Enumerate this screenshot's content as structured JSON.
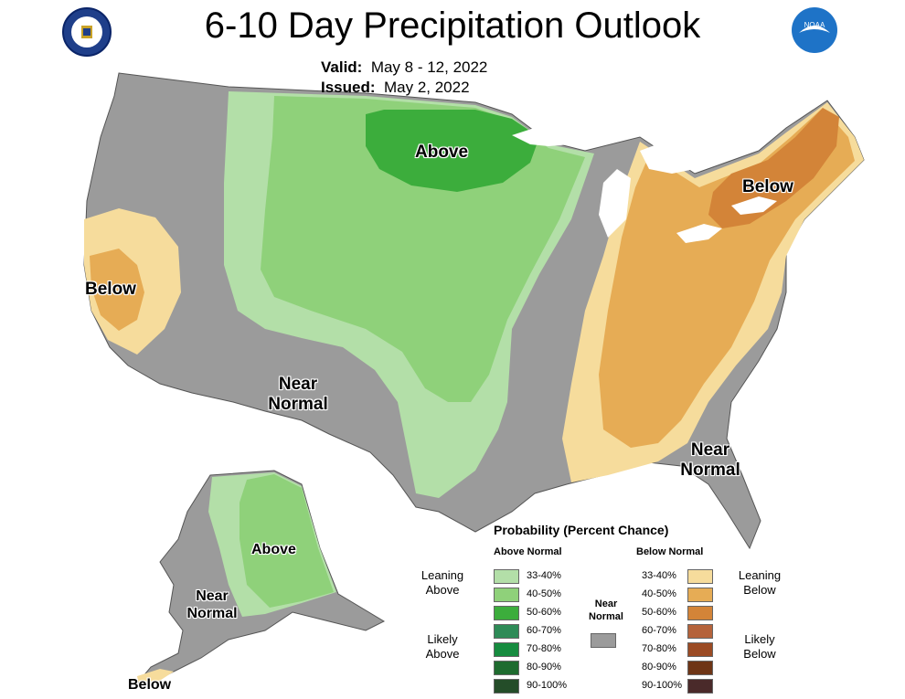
{
  "title": "6-10 Day Precipitation Outlook",
  "valid_label": "Valid:",
  "valid_value": "May 8 - 12, 2022",
  "issued_label": "Issued:",
  "issued_value": "May 2, 2022",
  "logos": {
    "left": "department-of-commerce-seal",
    "right": "NOAA"
  },
  "regions": {
    "above_north": "Above",
    "below_west": "Below",
    "below_northeast": "Below",
    "near_normal_west": "Near Normal",
    "near_normal_southeast": "Near Normal",
    "alaska_above": "Above",
    "alaska_near_normal": "Near Normal",
    "alaska_below": "Below"
  },
  "legend": {
    "title": "Probability (Percent Chance)",
    "above_header": "Above Normal",
    "below_header": "Below Normal",
    "near_normal": "Near Normal",
    "leaning_above": "Leaning Above",
    "likely_above": "Likely Above",
    "leaning_below": "Leaning Below",
    "likely_below": "Likely Below",
    "above_bins": [
      {
        "label": "33-40%",
        "color": "#b3dfa8"
      },
      {
        "label": "40-50%",
        "color": "#8fd17a"
      },
      {
        "label": "50-60%",
        "color": "#3cad3c"
      },
      {
        "label": "60-70%",
        "color": "#2e8b57"
      },
      {
        "label": "70-80%",
        "color": "#168c3f"
      },
      {
        "label": "80-90%",
        "color": "#1e6b2f"
      },
      {
        "label": "90-100%",
        "color": "#244d29"
      }
    ],
    "below_bins": [
      {
        "label": "33-40%",
        "color": "#f6dc9c"
      },
      {
        "label": "40-50%",
        "color": "#e6ac55"
      },
      {
        "label": "50-60%",
        "color": "#d38438"
      },
      {
        "label": "60-70%",
        "color": "#b5633b"
      },
      {
        "label": "70-80%",
        "color": "#9b4b24"
      },
      {
        "label": "80-90%",
        "color": "#6e3516"
      },
      {
        "label": "90-100%",
        "color": "#4a2a2a"
      }
    ],
    "near_normal_color": "#9b9b9b"
  }
}
